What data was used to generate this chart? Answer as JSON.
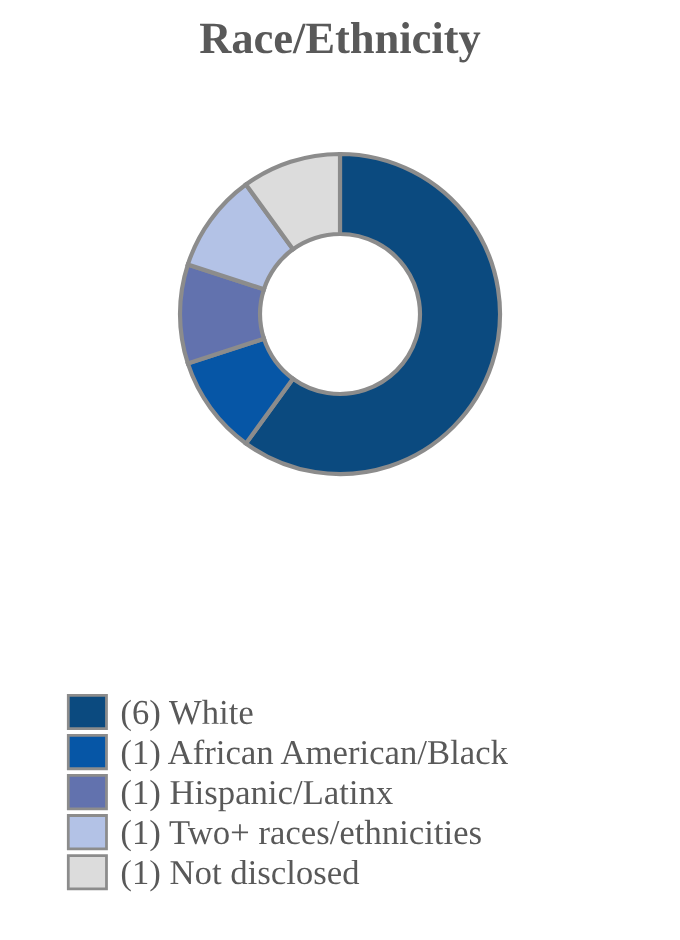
{
  "chart_data": {
    "type": "donut",
    "title": "Race/Ethnicity",
    "categories": [
      "(6) White",
      "(1) African American/Black",
      "(1) Hispanic/Latinx",
      "(1) Two+ races/ethnicities",
      "(1) Not disclosed"
    ],
    "values": [
      6,
      1,
      1,
      1,
      1
    ],
    "colors": [
      "#0b4a7f",
      "#0656a6",
      "#6272ae",
      "#b3c2e6",
      "#dcdcdc"
    ],
    "legend": "bottom"
  }
}
